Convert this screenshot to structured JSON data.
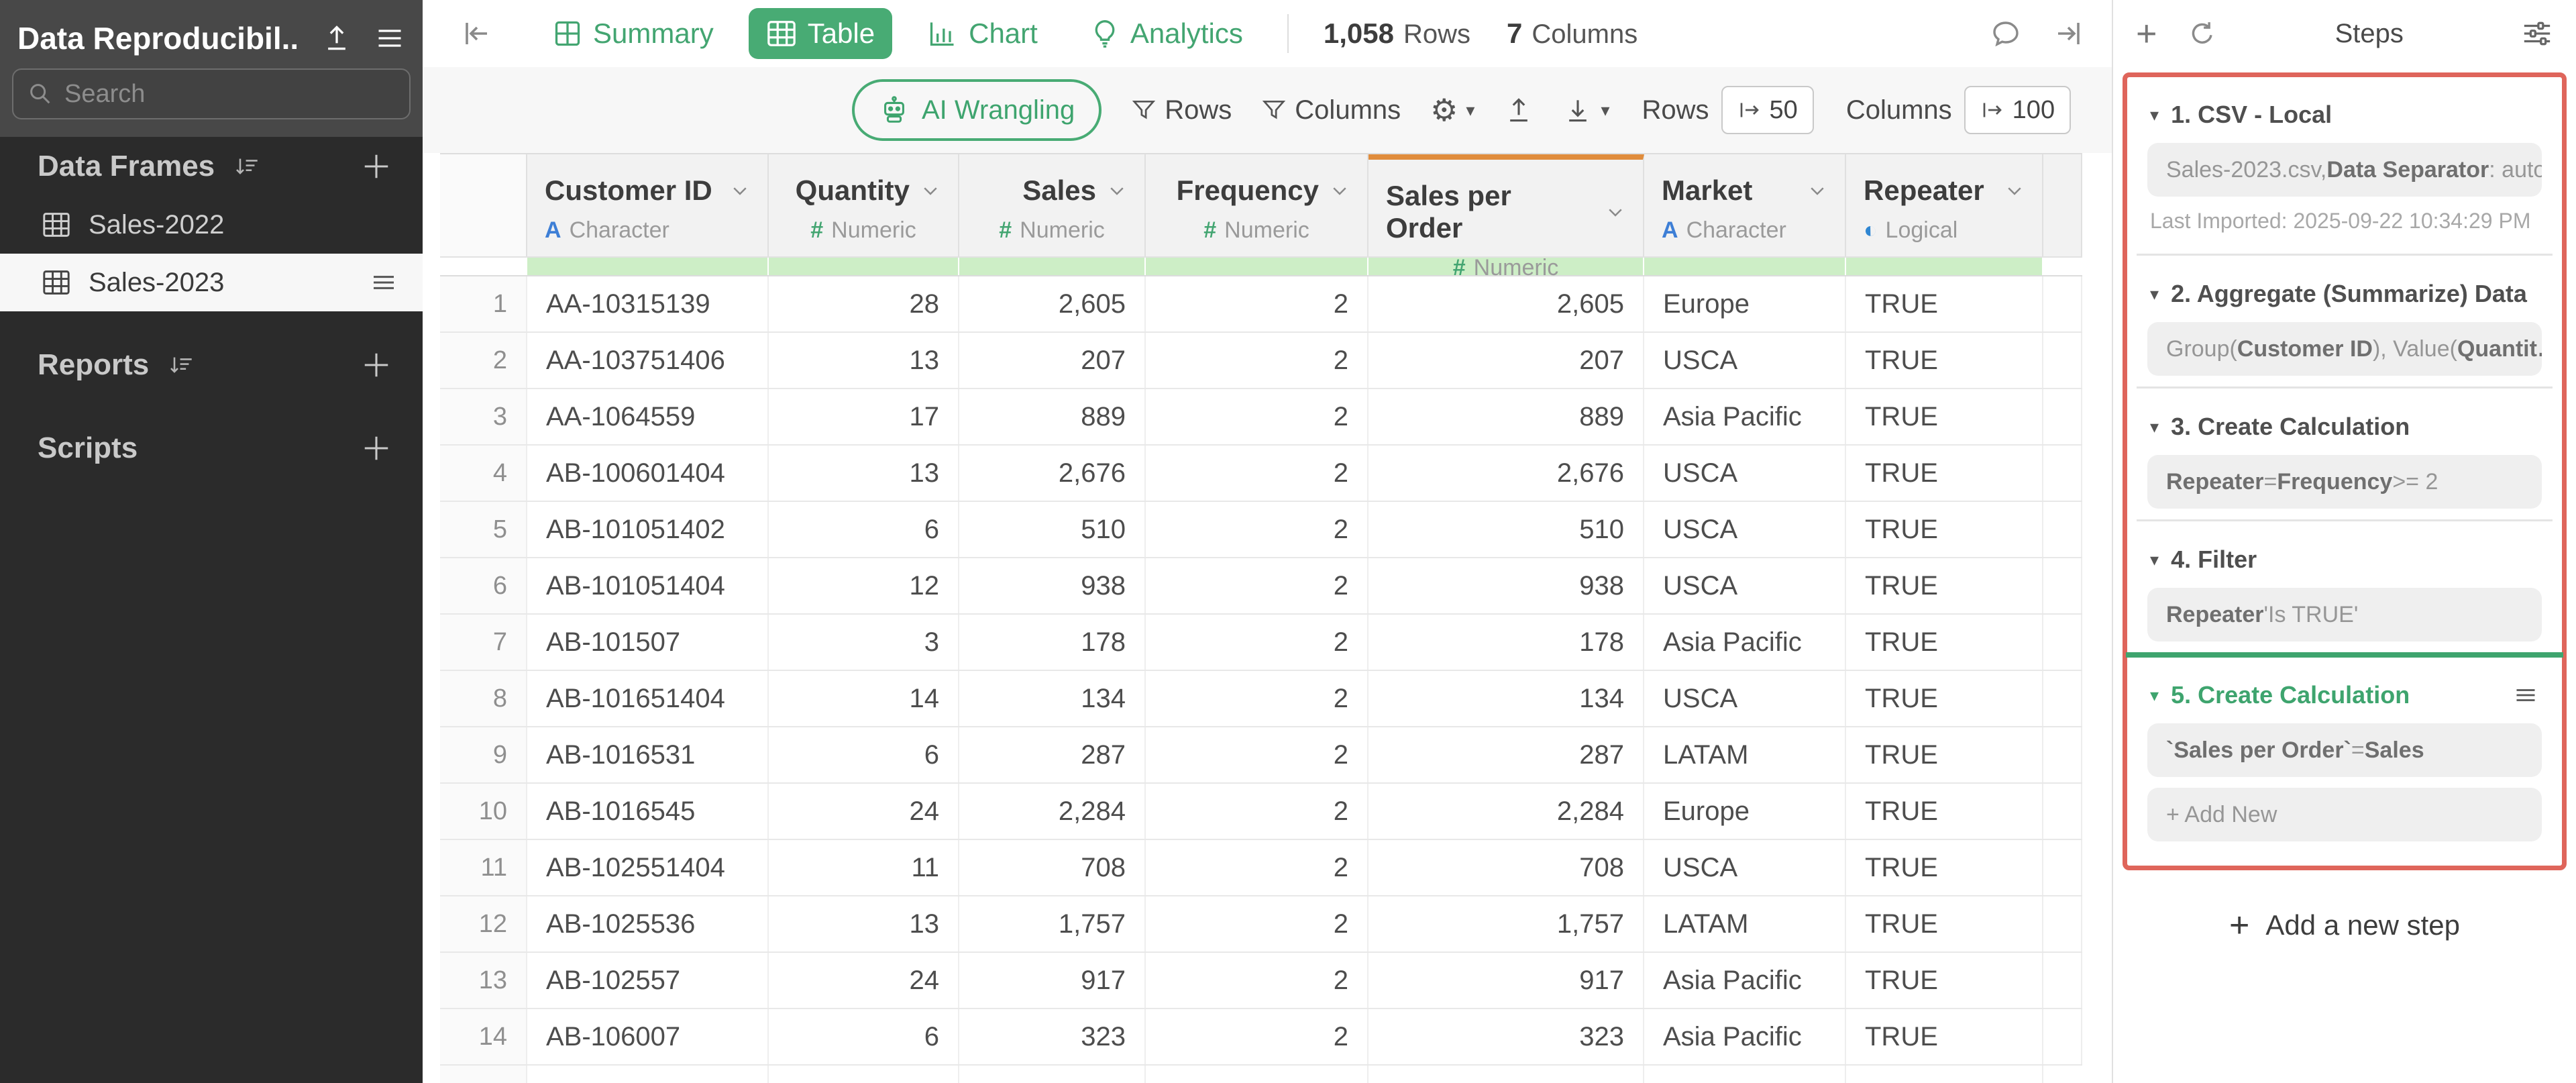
{
  "icons": {
    "gear": "⚙",
    "caret": "▾",
    "step_caret": "▾",
    "plus": "+",
    "char": "A",
    "num": "#",
    "logical": "◐"
  },
  "sidebar": {
    "title": "Data Reproducibil...",
    "search_placeholder": "Search",
    "sections": {
      "data_frames": {
        "label": "Data Frames"
      },
      "reports": {
        "label": "Reports"
      },
      "scripts": {
        "label": "Scripts"
      }
    },
    "items": [
      {
        "label": "Sales-2022",
        "selected": false
      },
      {
        "label": "Sales-2023",
        "selected": true
      }
    ]
  },
  "toolbar": {
    "tabs": [
      {
        "label": "Summary",
        "active": false
      },
      {
        "label": "Table",
        "active": true
      },
      {
        "label": "Chart",
        "active": false
      },
      {
        "label": "Analytics",
        "active": false
      }
    ],
    "row_count": "1,058",
    "rows_label": "Rows",
    "column_count": "7",
    "columns_label": "Columns"
  },
  "wrangle_bar": {
    "ai_button": "AI Wrangling",
    "filter_rows": "Rows",
    "filter_columns": "Columns",
    "rows_label": "Rows",
    "rows_limit": "50",
    "columns_label": "Columns",
    "columns_limit": "100"
  },
  "table": {
    "columns": [
      {
        "name": "Customer ID",
        "type": "Character",
        "icon": "char",
        "align": "left",
        "highlight": false
      },
      {
        "name": "Quantity",
        "type": "Numeric",
        "icon": "num",
        "align": "right",
        "highlight": false
      },
      {
        "name": "Sales",
        "type": "Numeric",
        "icon": "num",
        "align": "right",
        "highlight": false
      },
      {
        "name": "Frequency",
        "type": "Numeric",
        "icon": "num",
        "align": "right",
        "highlight": false
      },
      {
        "name": "Sales per Order",
        "type": "Numeric",
        "icon": "num",
        "align": "right",
        "highlight": true
      },
      {
        "name": "Market",
        "type": "Character",
        "icon": "char",
        "align": "left",
        "highlight": false
      },
      {
        "name": "Repeater",
        "type": "Logical",
        "icon": "logical",
        "align": "left",
        "highlight": false
      }
    ],
    "rows": [
      [
        "AA-10315139",
        "28",
        "2,605",
        "2",
        "2,605",
        "Europe",
        "TRUE"
      ],
      [
        "AA-103751406",
        "13",
        "207",
        "2",
        "207",
        "USCA",
        "TRUE"
      ],
      [
        "AA-1064559",
        "17",
        "889",
        "2",
        "889",
        "Asia Pacific",
        "TRUE"
      ],
      [
        "AB-100601404",
        "13",
        "2,676",
        "2",
        "2,676",
        "USCA",
        "TRUE"
      ],
      [
        "AB-101051402",
        "6",
        "510",
        "2",
        "510",
        "USCA",
        "TRUE"
      ],
      [
        "AB-101051404",
        "12",
        "938",
        "2",
        "938",
        "USCA",
        "TRUE"
      ],
      [
        "AB-101507",
        "3",
        "178",
        "2",
        "178",
        "Asia Pacific",
        "TRUE"
      ],
      [
        "AB-101651404",
        "14",
        "134",
        "2",
        "134",
        "USCA",
        "TRUE"
      ],
      [
        "AB-1016531",
        "6",
        "287",
        "2",
        "287",
        "LATAM",
        "TRUE"
      ],
      [
        "AB-1016545",
        "24",
        "2,284",
        "2",
        "2,284",
        "Europe",
        "TRUE"
      ],
      [
        "AB-102551404",
        "11",
        "708",
        "2",
        "708",
        "USCA",
        "TRUE"
      ],
      [
        "AB-1025536",
        "13",
        "1,757",
        "2",
        "1,757",
        "LATAM",
        "TRUE"
      ],
      [
        "AB-102557",
        "24",
        "917",
        "2",
        "917",
        "Asia Pacific",
        "TRUE"
      ],
      [
        "AB-106007",
        "6",
        "323",
        "2",
        "323",
        "Asia Pacific",
        "TRUE"
      ]
    ]
  },
  "steps_panel": {
    "title": "Steps",
    "steps": [
      {
        "num": "1",
        "title": "CSV - Local",
        "active": false,
        "menu": false,
        "chip": [
          {
            "t": "Sales-2023.csv, "
          },
          {
            "t": "Data Separator",
            "b": true
          },
          {
            "t": ": auto"
          }
        ],
        "meta": "Last Imported: 2025-09-22 10:34:29 PM"
      },
      {
        "num": "2",
        "title": "Aggregate (Summarize) Data",
        "active": false,
        "menu": false,
        "chip": [
          {
            "t": "Group("
          },
          {
            "t": "Customer ID",
            "b": true
          },
          {
            "t": "), Value("
          },
          {
            "t": "Quantit…",
            "b": true
          }
        ]
      },
      {
        "num": "3",
        "title": "Create Calculation",
        "active": false,
        "menu": false,
        "chip": [
          {
            "t": "Repeater",
            "b": true
          },
          {
            "t": " = "
          },
          {
            "t": "Frequency",
            "b": true
          },
          {
            "t": " >= 2"
          }
        ]
      },
      {
        "num": "4",
        "title": "Filter",
        "active": false,
        "menu": false,
        "chip": [
          {
            "t": "Repeater",
            "b": true
          },
          {
            "t": " 'Is TRUE'"
          }
        ]
      },
      {
        "num": "5",
        "title": "Create Calculation",
        "active": true,
        "menu": true,
        "chip": [
          {
            "t": "`Sales per Order`",
            "b": true
          },
          {
            "t": " = "
          },
          {
            "t": "Sales",
            "b": true
          }
        ],
        "add_new": "+ Add New"
      }
    ],
    "add_step_label": "Add a new step"
  },
  "colors": {
    "accent_green": "#48AB74",
    "quality_green": "#CDEEC6",
    "highlight_orange": "#E08C3C",
    "selection_red": "#DF655B",
    "char_blue": "#3E7FD6",
    "logical_blue": "#2F86D2",
    "numeric_green": "#43A571"
  }
}
